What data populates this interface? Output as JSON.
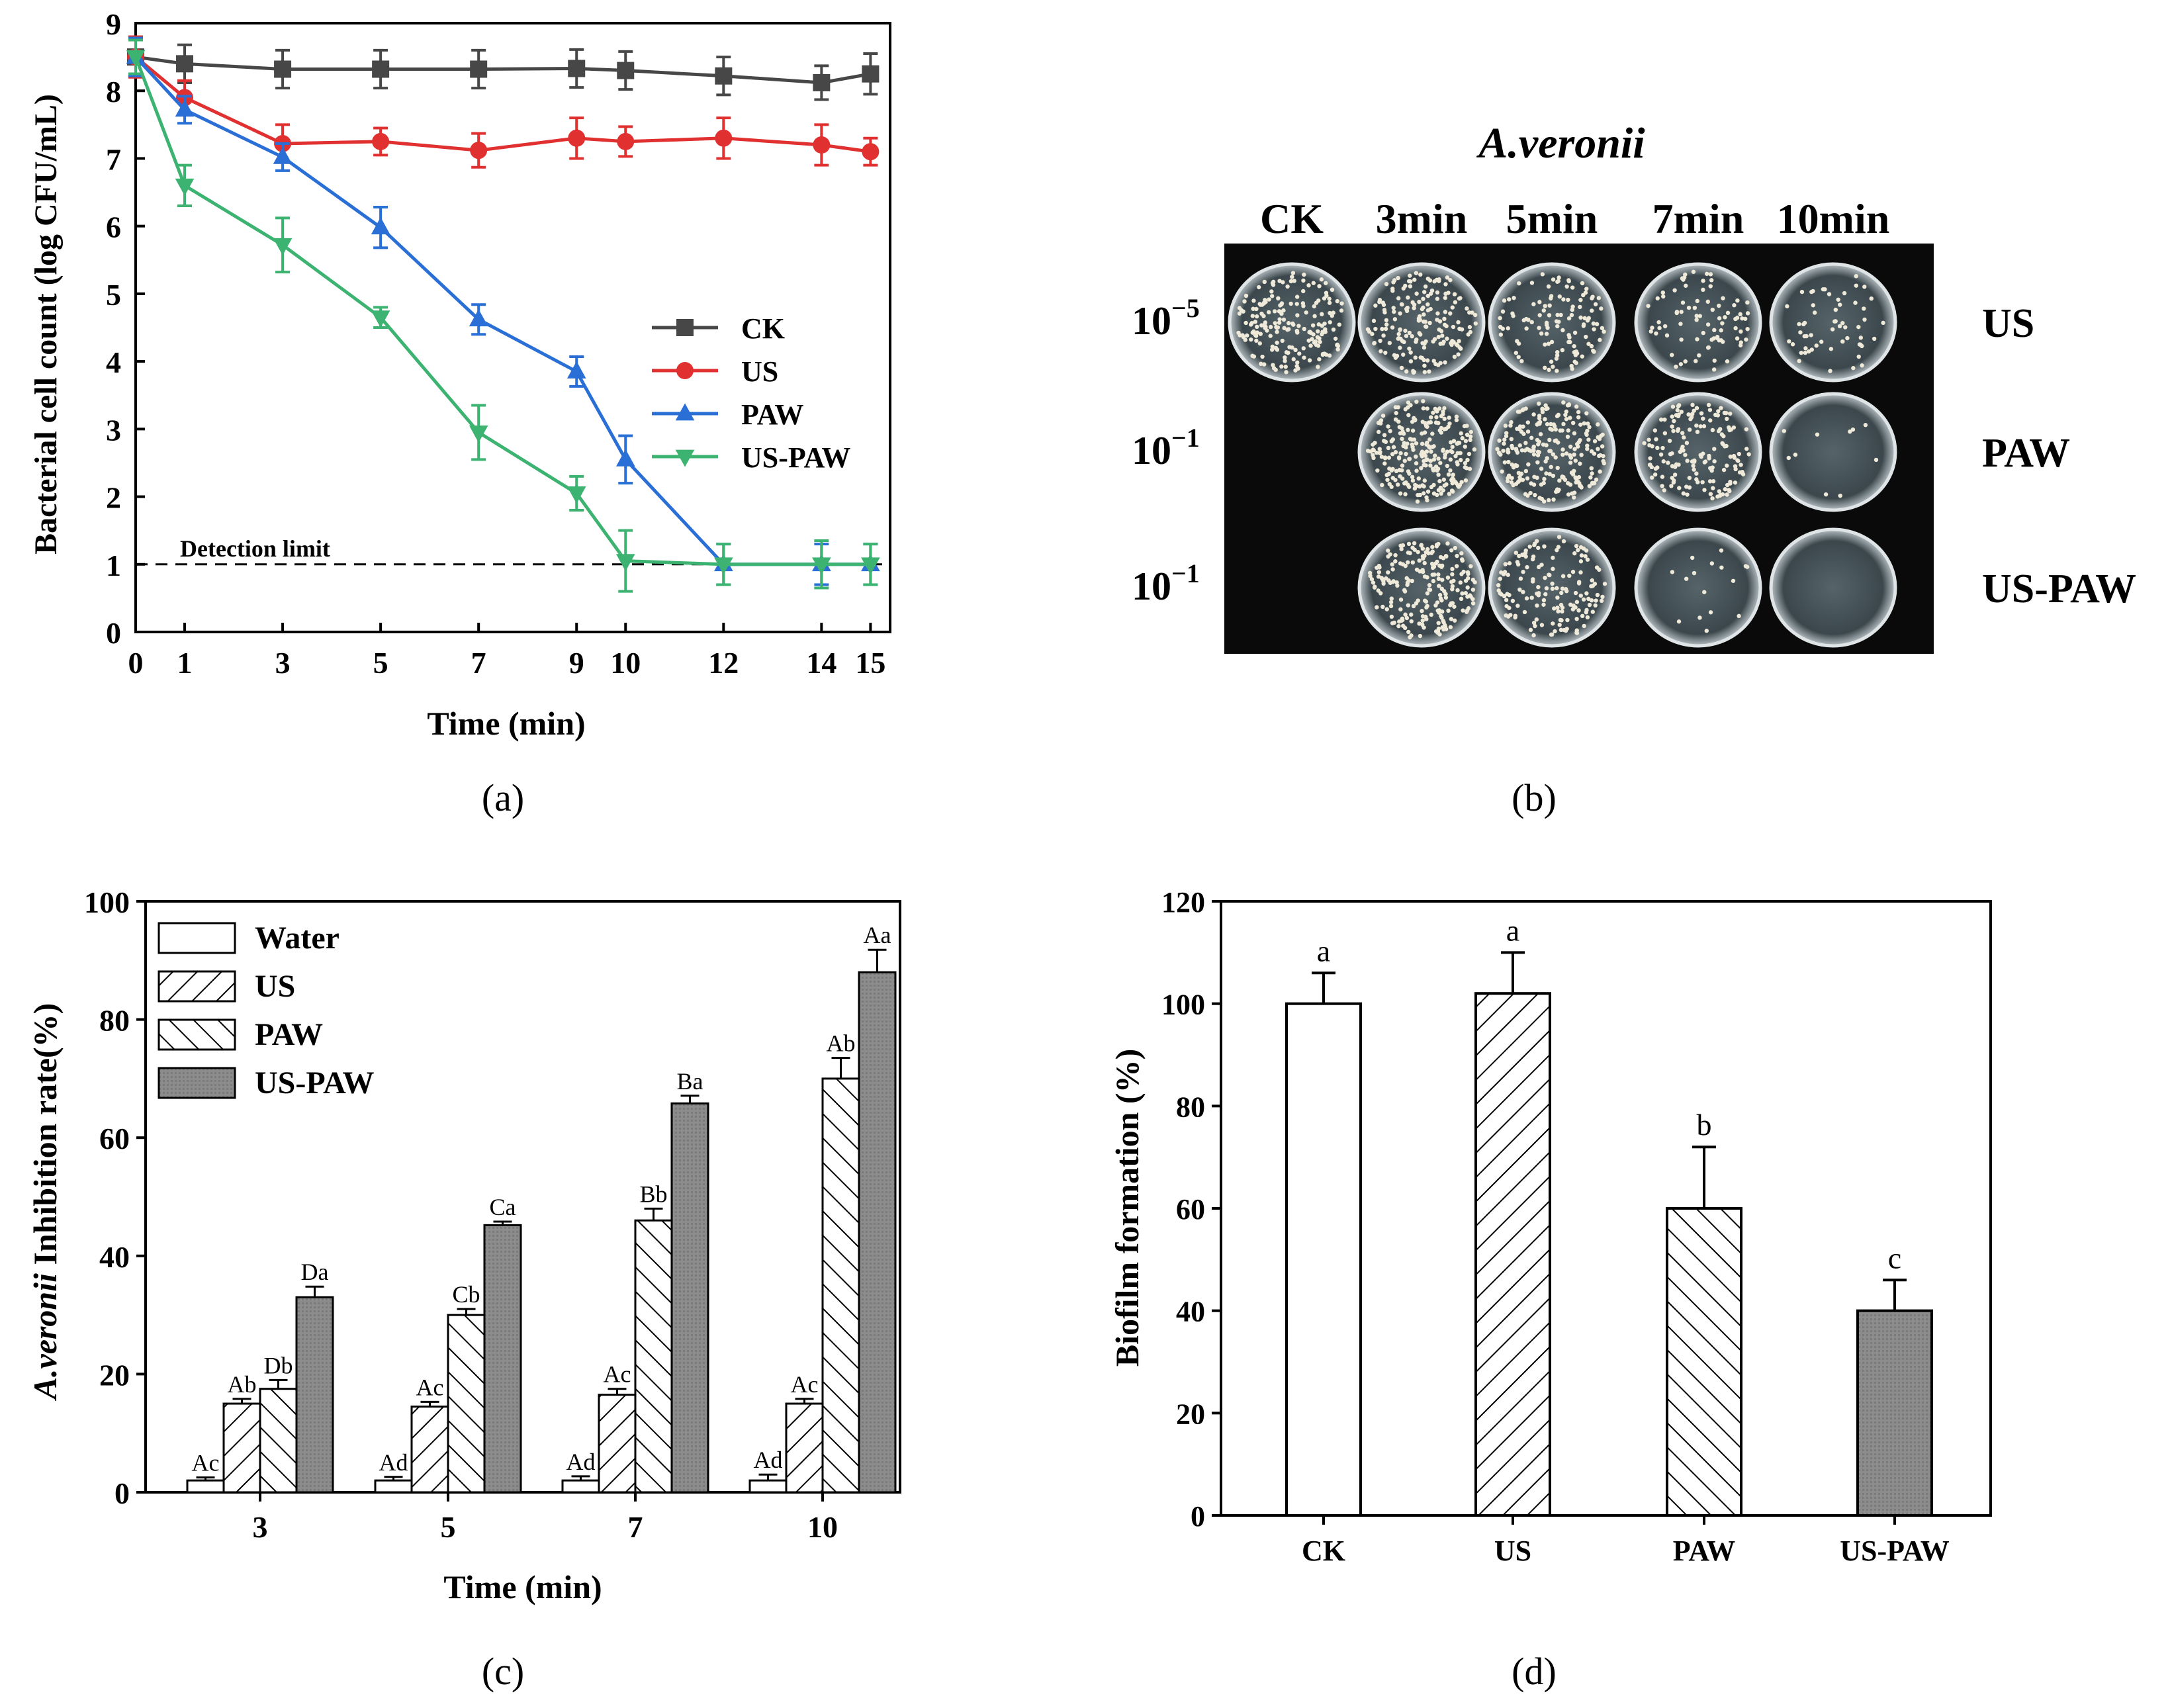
{
  "chart_data": [
    {
      "panel": "(a)",
      "type": "line",
      "xlabel": "Time (min)",
      "ylabel": "Bacterial cell count (log CFU/mL)",
      "x": [
        0,
        1,
        3,
        5,
        7,
        9,
        10,
        12,
        14,
        15
      ],
      "xticks": [
        "0",
        "1",
        "3",
        "5",
        "7",
        "9",
        "10",
        "12",
        "14",
        "15"
      ],
      "ylim": [
        0,
        9
      ],
      "yticks": [
        "0",
        "1",
        "2",
        "3",
        "4",
        "5",
        "6",
        "7",
        "8",
        "9"
      ],
      "detection_limit": {
        "value": 1,
        "label": "Detection limit"
      },
      "legend_position": "right-middle",
      "series": [
        {
          "name": "CK",
          "color": "#474747",
          "marker": "square",
          "values": [
            8.5,
            8.4,
            8.32,
            8.32,
            8.32,
            8.33,
            8.3,
            8.22,
            8.12,
            8.25
          ],
          "errors": [
            0.25,
            0.28,
            0.28,
            0.28,
            0.28,
            0.28,
            0.28,
            0.28,
            0.25,
            0.3
          ]
        },
        {
          "name": "US",
          "color": "#e03030",
          "marker": "circle",
          "values": [
            8.5,
            7.9,
            7.22,
            7.25,
            7.12,
            7.3,
            7.25,
            7.3,
            7.2,
            7.1
          ],
          "errors": [
            0.3,
            0.25,
            0.28,
            0.2,
            0.25,
            0.3,
            0.22,
            0.3,
            0.3,
            0.2
          ]
        },
        {
          "name": "PAW",
          "color": "#2a6fd6",
          "marker": "triangle-up",
          "values": [
            8.5,
            7.72,
            7.02,
            5.98,
            4.62,
            3.85,
            2.55,
            1.0,
            1.0,
            1.0
          ],
          "errors": [
            0.28,
            0.2,
            0.2,
            0.3,
            0.22,
            0.22,
            0.35,
            0.3,
            0.3,
            0.3
          ]
        },
        {
          "name": "US-PAW",
          "color": "#3cb371",
          "marker": "triangle-down",
          "values": [
            8.5,
            6.6,
            5.72,
            4.65,
            2.95,
            2.05,
            1.05,
            1.0,
            1.0,
            1.0
          ],
          "errors": [
            0.25,
            0.3,
            0.4,
            0.15,
            0.4,
            0.25,
            0.45,
            0.3,
            0.35,
            0.3
          ]
        }
      ]
    },
    {
      "panel": "(b)",
      "type": "image-grid",
      "title": "A.veronii",
      "columns": [
        "CK",
        "3min",
        "5min",
        "7min",
        "10min"
      ],
      "rows": [
        {
          "dilution_base": "10",
          "dilution_exp": "−5",
          "label": "US",
          "densities": [
            0.75,
            0.7,
            0.45,
            0.32,
            0.22
          ]
        },
        {
          "dilution_base": "10",
          "dilution_exp": "−1",
          "label": "PAW",
          "densities": [
            null,
            1.0,
            0.9,
            0.62,
            0.04
          ]
        },
        {
          "dilution_base": "10",
          "dilution_exp": "−1",
          "label": "US-PAW",
          "densities": [
            null,
            0.85,
            0.6,
            0.06,
            0.0
          ]
        }
      ]
    },
    {
      "panel": "(c)",
      "type": "bar",
      "xlabel": "Time (min)",
      "ylabel_italic": "A.veronii",
      "ylabel_rest": " Inhibition rate(%)",
      "categories": [
        "3",
        "5",
        "7",
        "10"
      ],
      "ylim": [
        0,
        100
      ],
      "yticks": [
        "0",
        "20",
        "40",
        "60",
        "80",
        "100"
      ],
      "legend_position": "top-left",
      "series": [
        {
          "name": "Water",
          "fill": "white",
          "values": [
            2,
            2,
            2,
            2
          ],
          "errors": [
            0.5,
            0.6,
            0.7,
            1.0
          ],
          "labels": [
            "Ac",
            "Ad",
            "Ad",
            "Ad"
          ]
        },
        {
          "name": "US",
          "fill": "hatch-forward",
          "values": [
            15,
            14.5,
            16.5,
            15
          ],
          "errors": [
            0.8,
            0.8,
            1.0,
            0.8
          ],
          "labels": [
            "Ab",
            "Ac",
            "Ac",
            "Ac"
          ]
        },
        {
          "name": "PAW",
          "fill": "hatch-back",
          "values": [
            17.5,
            30,
            46,
            70
          ],
          "errors": [
            1.5,
            1.0,
            2.0,
            3.5
          ],
          "labels": [
            "Db",
            "Cb",
            "Bb",
            "Ab"
          ]
        },
        {
          "name": "US-PAW",
          "fill": "gray",
          "values": [
            33,
            45.2,
            65.8,
            88
          ],
          "errors": [
            1.8,
            0.6,
            1.3,
            3.8
          ],
          "labels": [
            "Da",
            "Ca",
            "Ba",
            "Aa"
          ]
        }
      ]
    },
    {
      "panel": "(d)",
      "type": "bar",
      "ylabel": "Biofilm formation (%)",
      "categories": [
        "CK",
        "US",
        "PAW",
        "US-PAW"
      ],
      "ylim": [
        0,
        120
      ],
      "yticks": [
        "0",
        "20",
        "40",
        "60",
        "80",
        "100",
        "120"
      ],
      "values": [
        100,
        102,
        60,
        40
      ],
      "errors": [
        6,
        8,
        12,
        6
      ],
      "labels": [
        "a",
        "a",
        "b",
        "c"
      ],
      "fills": [
        "white",
        "hatch-forward",
        "hatch-back",
        "gray"
      ]
    }
  ]
}
